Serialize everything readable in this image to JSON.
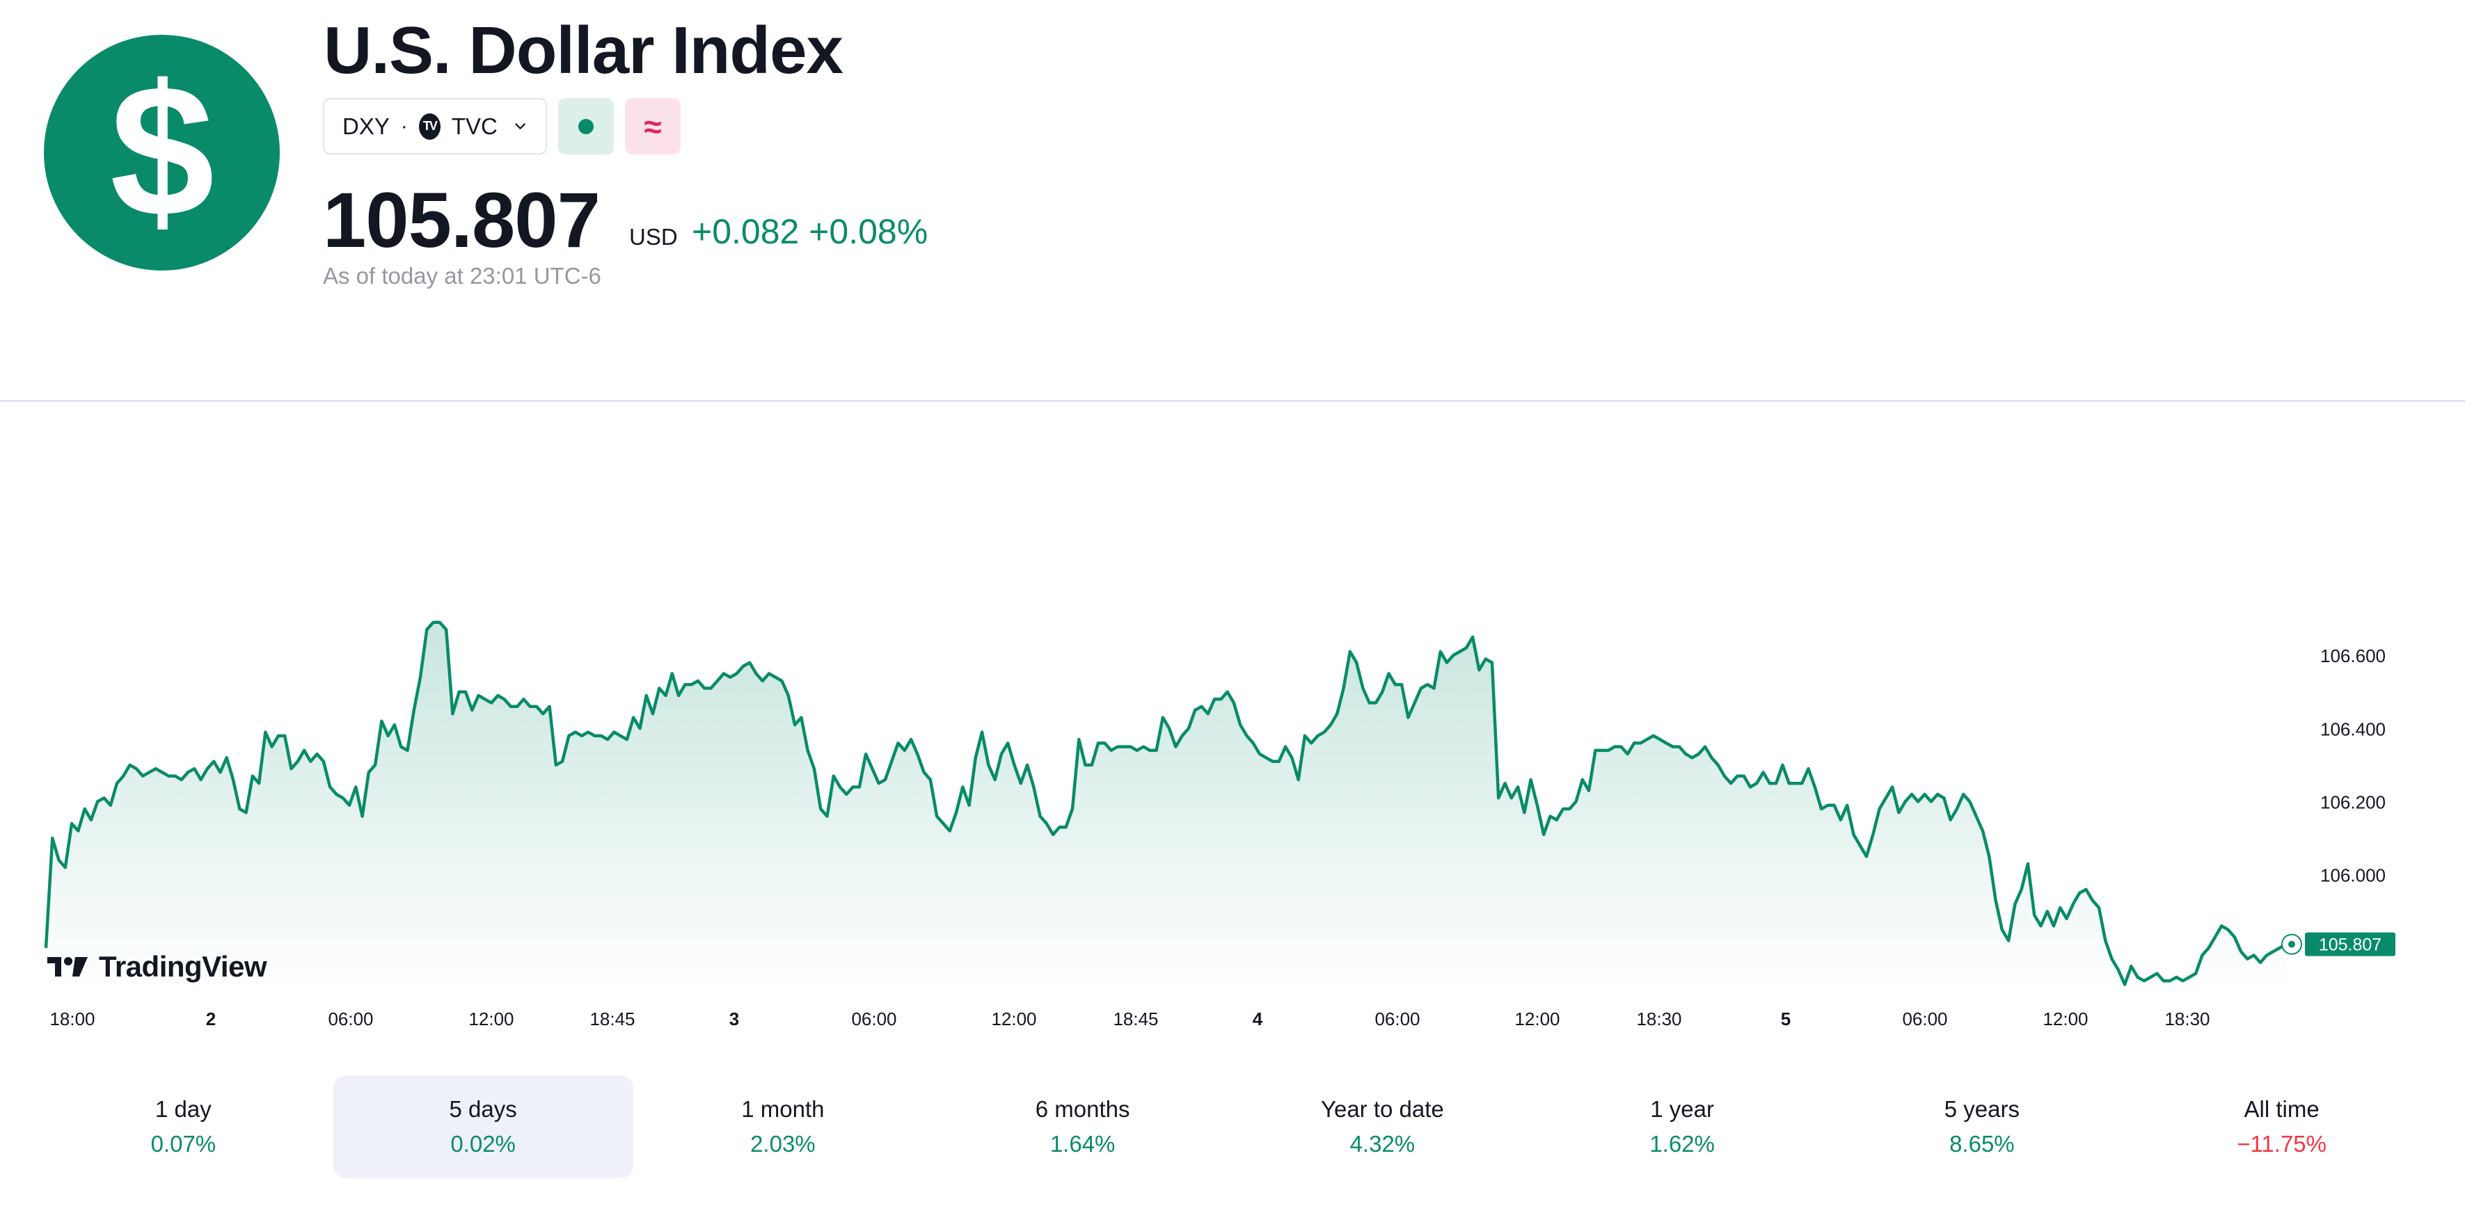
{
  "header": {
    "title": "U.S. Dollar Index",
    "symbol": "DXY",
    "separator": "·",
    "exchange": "TVC",
    "exchange_badge": "TV",
    "delay_symbol": "≈",
    "price": "105.807",
    "currency": "USD",
    "change": "+0.082 +0.08%",
    "as_of": "As of today at 23:01 UTC-6"
  },
  "colors": {
    "accent": "#098b6a",
    "negative": "#f23645",
    "delayed": "#e0245e"
  },
  "icons": {
    "logo": "dollar-sign-icon",
    "dropdown": "chevron-down-icon",
    "status": "market-open-dot-icon",
    "delay": "approx-icon"
  },
  "branding": {
    "tradingview": "TradingView"
  },
  "chart_data": {
    "type": "area",
    "y_ticks": [
      "106.600",
      "106.400",
      "106.200",
      "106.000"
    ],
    "ylim": [
      105.68,
      106.76
    ],
    "x_ticks": [
      "18:00",
      "2",
      "06:00",
      "12:00",
      "18:45",
      "3",
      "06:00",
      "12:00",
      "18:45",
      "4",
      "06:00",
      "12:00",
      "18:30",
      "5",
      "06:00",
      "12:00",
      "18:30"
    ],
    "x_ticks_bold": [
      false,
      true,
      false,
      false,
      false,
      true,
      false,
      false,
      false,
      true,
      false,
      false,
      false,
      true,
      false,
      false,
      false
    ],
    "last_value_label": "105.807",
    "grid": false,
    "y": [
      105.8,
      106.1,
      106.04,
      106.02,
      106.14,
      106.12,
      106.18,
      106.15,
      106.2,
      106.21,
      106.19,
      106.25,
      106.27,
      106.3,
      106.29,
      106.27,
      106.28,
      106.29,
      106.28,
      106.27,
      106.27,
      106.26,
      106.28,
      106.29,
      106.26,
      106.29,
      106.31,
      106.28,
      106.32,
      106.26,
      106.18,
      106.17,
      106.27,
      106.25,
      106.39,
      106.35,
      106.38,
      106.38,
      106.29,
      106.31,
      106.34,
      106.31,
      106.33,
      106.31,
      106.24,
      106.22,
      106.21,
      106.19,
      106.24,
      106.16,
      106.28,
      106.3,
      106.42,
      106.38,
      106.41,
      106.35,
      106.34,
      106.45,
      106.54,
      106.67,
      106.69,
      106.69,
      106.67,
      106.44,
      106.5,
      106.5,
      106.45,
      106.49,
      106.48,
      106.47,
      106.49,
      106.48,
      106.46,
      106.46,
      106.48,
      106.46,
      106.46,
      106.44,
      106.46,
      106.3,
      106.31,
      106.38,
      106.39,
      106.38,
      106.39,
      106.38,
      106.38,
      106.37,
      106.39,
      106.38,
      106.37,
      106.43,
      106.4,
      106.49,
      106.44,
      106.51,
      106.49,
      106.55,
      106.49,
      106.52,
      106.52,
      106.53,
      106.51,
      106.51,
      106.53,
      106.55,
      106.54,
      106.55,
      106.57,
      106.58,
      106.55,
      106.53,
      106.55,
      106.54,
      106.53,
      106.49,
      106.41,
      106.43,
      106.34,
      106.29,
      106.18,
      106.16,
      106.27,
      106.24,
      106.22,
      106.24,
      106.24,
      106.33,
      106.29,
      106.25,
      106.26,
      106.31,
      106.36,
      106.34,
      106.37,
      106.33,
      106.28,
      106.26,
      106.16,
      106.14,
      106.12,
      106.17,
      106.24,
      106.19,
      106.32,
      106.39,
      106.3,
      106.26,
      106.33,
      106.36,
      106.3,
      106.25,
      106.3,
      106.24,
      106.16,
      106.14,
      106.11,
      106.13,
      106.13,
      106.18,
      106.37,
      106.3,
      106.3,
      106.36,
      106.36,
      106.34,
      106.35,
      106.35,
      106.35,
      106.34,
      106.35,
      106.34,
      106.34,
      106.43,
      106.4,
      106.35,
      106.38,
      106.4,
      106.45,
      106.46,
      106.44,
      106.48,
      106.48,
      106.5,
      106.47,
      106.41,
      106.38,
      106.36,
      106.33,
      106.32,
      106.31,
      106.31,
      106.35,
      106.32,
      106.26,
      106.38,
      106.36,
      106.38,
      106.39,
      106.41,
      106.44,
      106.51,
      106.61,
      106.58,
      106.51,
      106.47,
      106.47,
      106.5,
      106.55,
      106.52,
      106.52,
      106.43,
      106.47,
      106.51,
      106.52,
      106.51,
      106.61,
      106.58,
      106.6,
      106.61,
      106.62,
      106.65,
      106.56,
      106.59,
      106.58,
      106.21,
      106.25,
      106.21,
      106.24,
      106.17,
      106.26,
      106.19,
      106.11,
      106.16,
      106.15,
      106.18,
      106.18,
      106.2,
      106.26,
      106.23,
      106.34,
      106.34,
      106.34,
      106.35,
      106.35,
      106.33,
      106.36,
      106.36,
      106.37,
      106.38,
      106.37,
      106.36,
      106.35,
      106.35,
      106.33,
      106.32,
      106.33,
      106.35,
      106.32,
      106.3,
      106.27,
      106.25,
      106.27,
      106.27,
      106.24,
      106.25,
      106.28,
      106.25,
      106.25,
      106.3,
      106.25,
      106.25,
      106.25,
      106.29,
      106.24,
      106.18,
      106.19,
      106.19,
      106.15,
      106.19,
      106.11,
      106.08,
      106.05,
      106.11,
      106.18,
      106.21,
      106.24,
      106.17,
      106.2,
      106.22,
      106.2,
      106.22,
      106.2,
      106.22,
      106.21,
      106.15,
      106.18,
      106.22,
      106.2,
      106.16,
      106.12,
      106.05,
      105.93,
      105.85,
      105.82,
      105.92,
      105.96,
      106.03,
      105.89,
      105.86,
      105.9,
      105.86,
      105.91,
      105.88,
      105.92,
      105.95,
      105.96,
      105.93,
      105.91,
      105.82,
      105.77,
      105.74,
      105.7,
      105.75,
      105.72,
      105.71,
      105.72,
      105.73,
      105.71,
      105.71,
      105.72,
      105.71,
      105.72,
      105.73,
      105.78,
      105.8,
      105.83,
      105.86,
      105.85,
      105.83,
      105.79,
      105.77,
      105.78,
      105.76,
      105.78,
      105.79,
      105.8,
      105.81
    ]
  },
  "periods": [
    {
      "label": "1 day",
      "value": "0.07%",
      "sign": "pos"
    },
    {
      "label": "5 days",
      "value": "0.02%",
      "sign": "pos",
      "active": true
    },
    {
      "label": "1 month",
      "value": "2.03%",
      "sign": "pos"
    },
    {
      "label": "6 months",
      "value": "1.64%",
      "sign": "pos"
    },
    {
      "label": "Year to date",
      "value": "4.32%",
      "sign": "pos"
    },
    {
      "label": "1 year",
      "value": "1.62%",
      "sign": "pos"
    },
    {
      "label": "5 years",
      "value": "8.65%",
      "sign": "pos"
    },
    {
      "label": "All time",
      "value": "−11.75%",
      "sign": "neg"
    }
  ]
}
